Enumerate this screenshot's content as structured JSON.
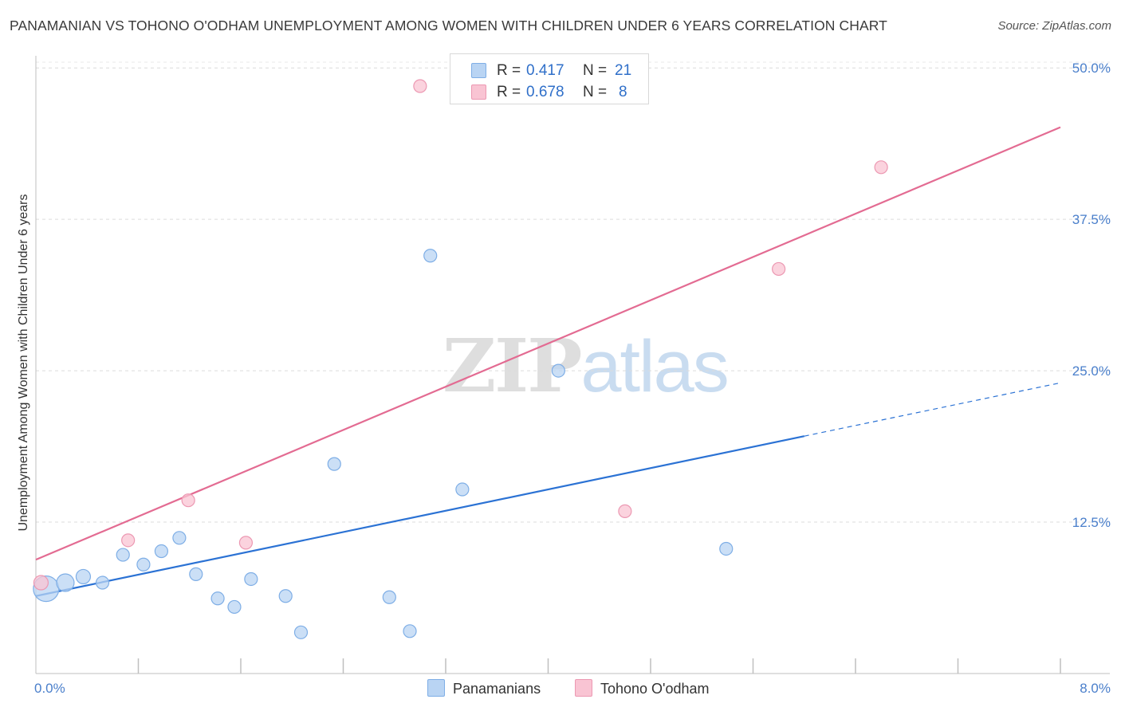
{
  "title": "PANAMANIAN VS TOHONO O'ODHAM UNEMPLOYMENT AMONG WOMEN WITH CHILDREN UNDER 6 YEARS CORRELATION CHART",
  "source": "Source: ZipAtlas.com",
  "watermark": {
    "part1": "ZIP",
    "part2": "atlas"
  },
  "colors": {
    "blue_fill": "#b9d4f3",
    "blue_stroke": "#7eaee6",
    "blue_line": "#2b72d4",
    "pink_fill": "#f9c4d3",
    "pink_stroke": "#ec98b2",
    "pink_line": "#e36b92",
    "axis_text": "#4a7fcb",
    "grid": "#dcdcdc"
  },
  "stats": [
    {
      "series": "Panamanians",
      "r_label": "R =",
      "r_value": "0.417",
      "n_label": "N =",
      "n_value": "21"
    },
    {
      "series": "Tohono O'odham",
      "r_label": "R =",
      "r_value": "0.678",
      "n_label": "N =",
      "n_value": "8"
    }
  ],
  "legend": [
    "Panamanians",
    "Tohono O'odham"
  ],
  "chart_data": {
    "type": "scatter",
    "title": "PANAMANIAN VS TOHONO O'ODHAM UNEMPLOYMENT AMONG WOMEN WITH CHILDREN UNDER 6 YEARS CORRELATION CHART",
    "xlabel": "",
    "ylabel": "Unemployment Among Women with Children Under 6 years",
    "xlim": [
      0,
      8
    ],
    "ylim": [
      0,
      51
    ],
    "x_tick_labels": [
      {
        "value": 0,
        "label": "0.0%"
      },
      {
        "value": 8,
        "label": "8.0%"
      }
    ],
    "y_tick_labels": [
      {
        "value": 12.5,
        "label": "12.5%"
      },
      {
        "value": 25,
        "label": "25.0%"
      },
      {
        "value": 37.5,
        "label": "37.5%"
      },
      {
        "value": 50,
        "label": "50.0%"
      }
    ],
    "grid": true,
    "series": [
      {
        "name": "Panamanians",
        "color": "blue",
        "points": [
          {
            "x": 0.08,
            "y": 7.0,
            "size": 16
          },
          {
            "x": 0.23,
            "y": 7.5,
            "size": 11
          },
          {
            "x": 0.37,
            "y": 8.0,
            "size": 9
          },
          {
            "x": 0.52,
            "y": 7.5,
            "size": 8
          },
          {
            "x": 0.68,
            "y": 9.8,
            "size": 8
          },
          {
            "x": 0.84,
            "y": 9.0,
            "size": 8
          },
          {
            "x": 0.98,
            "y": 10.1,
            "size": 8
          },
          {
            "x": 1.12,
            "y": 11.2,
            "size": 8
          },
          {
            "x": 1.25,
            "y": 8.2,
            "size": 8
          },
          {
            "x": 1.42,
            "y": 6.2,
            "size": 8
          },
          {
            "x": 1.55,
            "y": 5.5,
            "size": 8
          },
          {
            "x": 1.68,
            "y": 7.8,
            "size": 8
          },
          {
            "x": 1.95,
            "y": 6.4,
            "size": 8
          },
          {
            "x": 2.07,
            "y": 3.4,
            "size": 8
          },
          {
            "x": 2.33,
            "y": 17.3,
            "size": 8
          },
          {
            "x": 2.76,
            "y": 6.3,
            "size": 8
          },
          {
            "x": 2.92,
            "y": 3.5,
            "size": 8
          },
          {
            "x": 3.08,
            "y": 34.5,
            "size": 8
          },
          {
            "x": 3.33,
            "y": 15.2,
            "size": 8
          },
          {
            "x": 4.08,
            "y": 25.0,
            "size": 8
          },
          {
            "x": 5.39,
            "y": 10.3,
            "size": 8
          }
        ],
        "trend": {
          "x0": 0,
          "y0": 6.4,
          "x1": 6.0,
          "y1": 19.6,
          "dash_to_x": 8.0,
          "dash_to_y": 24.0
        }
      },
      {
        "name": "Tohono O'odham",
        "color": "pink",
        "points": [
          {
            "x": 0.04,
            "y": 7.5,
            "size": 9
          },
          {
            "x": 0.72,
            "y": 11.0,
            "size": 8
          },
          {
            "x": 1.19,
            "y": 14.3,
            "size": 8
          },
          {
            "x": 1.64,
            "y": 10.8,
            "size": 8
          },
          {
            "x": 3.0,
            "y": 48.5,
            "size": 8
          },
          {
            "x": 4.6,
            "y": 13.4,
            "size": 8
          },
          {
            "x": 5.8,
            "y": 33.4,
            "size": 8
          },
          {
            "x": 6.6,
            "y": 41.8,
            "size": 8
          }
        ],
        "trend": {
          "x0": 0,
          "y0": 9.4,
          "x1": 8.0,
          "y1": 45.1
        }
      }
    ]
  }
}
